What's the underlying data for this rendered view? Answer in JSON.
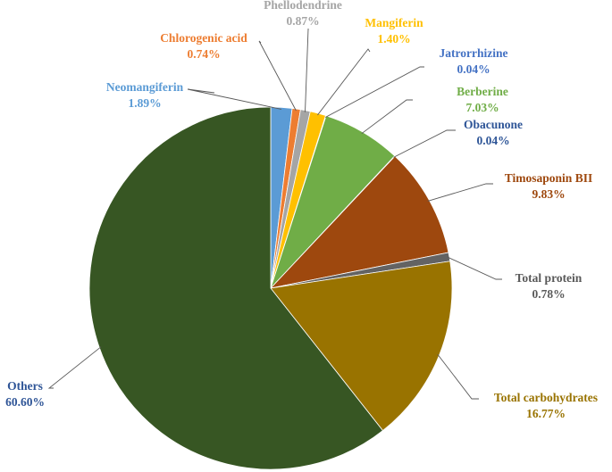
{
  "chart_data": {
    "type": "pie",
    "title": "",
    "slices": [
      {
        "label": "Neomangiferin",
        "value": 1.89,
        "value_label": "1.89%",
        "color": "#5b9bd5",
        "label_color": "#5b9bd5"
      },
      {
        "label": "Chlorogenic acid",
        "value": 0.74,
        "value_label": "0.74%",
        "color": "#ed7d31",
        "label_color": "#ed7d31"
      },
      {
        "label": "Phellodendrine",
        "value": 0.87,
        "value_label": "0.87%",
        "color": "#a5a5a5",
        "label_color": "#a5a5a5"
      },
      {
        "label": "Mangiferin",
        "value": 1.4,
        "value_label": "1.40%",
        "color": "#ffc000",
        "label_color": "#ffc000"
      },
      {
        "label": "Jatrorrhizine",
        "value": 0.04,
        "value_label": "0.04%",
        "color": "#4472c4",
        "label_color": "#4472c4"
      },
      {
        "label": "Berberine",
        "value": 7.03,
        "value_label": "7.03%",
        "color": "#70ad47",
        "label_color": "#70ad47"
      },
      {
        "label": "Obacunone",
        "value": 0.04,
        "value_label": "0.04%",
        "color": "#264478",
        "label_color": "#2e5597"
      },
      {
        "label": "Timosaponin BII",
        "value": 9.83,
        "value_label": "9.83%",
        "color": "#9e480e",
        "label_color": "#9e480e"
      },
      {
        "label": "Total protein",
        "value": 0.78,
        "value_label": "0.78%",
        "color": "#636363",
        "label_color": "#595959"
      },
      {
        "label": "Total carbohydrates",
        "value": 16.77,
        "value_label": "16.77%",
        "color": "#997300",
        "label_color": "#997300"
      },
      {
        "label": "Others",
        "value": 60.6,
        "value_label": "60.60%",
        "color": "#375623",
        "label_color": "#2f5597"
      }
    ]
  }
}
